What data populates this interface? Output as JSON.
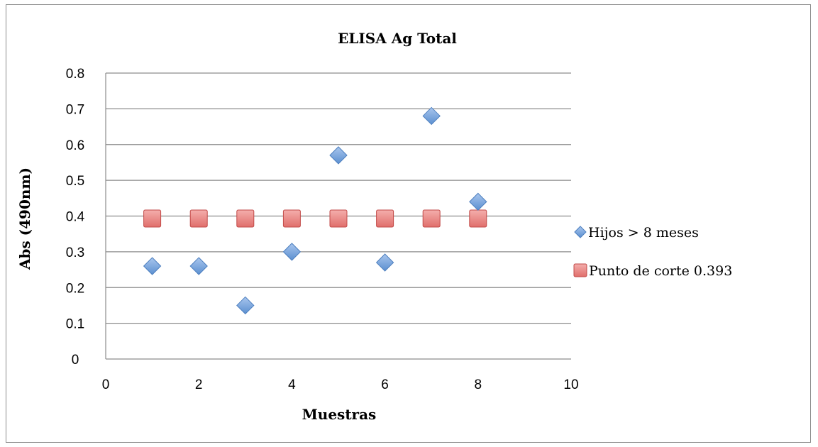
{
  "chart_data": {
    "type": "scatter",
    "title": "ELISA Ag Total",
    "xlabel": "Muestras",
    "ylabel": "Abs (490nm)",
    "xlim": [
      0,
      10
    ],
    "ylim": [
      0,
      0.8
    ],
    "xticks": [
      0,
      2,
      4,
      6,
      8,
      10
    ],
    "yticks": [
      0,
      0.1,
      0.2,
      0.3,
      0.4,
      0.5,
      0.6,
      0.7,
      0.8
    ],
    "xtick_labels": [
      "0",
      "2",
      "4",
      "6",
      "8",
      "10"
    ],
    "ytick_labels": [
      "0",
      "0.1",
      "0.2",
      "0.3",
      "0.4",
      "0.5",
      "0.6",
      "0.7",
      "0.8"
    ],
    "grid": "horizontal",
    "legend_position": "right",
    "series": [
      {
        "name": "Hijos > 8 meses",
        "marker": "diamond",
        "color": "#6f9fd8",
        "x": [
          1,
          2,
          3,
          4,
          5,
          6,
          7,
          8
        ],
        "y": [
          0.26,
          0.26,
          0.15,
          0.3,
          0.57,
          0.27,
          0.68,
          0.44
        ]
      },
      {
        "name": "Punto de corte 0.393",
        "marker": "square",
        "color": "#e87f7d",
        "x": [
          1,
          2,
          3,
          4,
          5,
          6,
          7,
          8
        ],
        "y": [
          0.393,
          0.393,
          0.393,
          0.393,
          0.393,
          0.393,
          0.393,
          0.393
        ]
      }
    ]
  }
}
